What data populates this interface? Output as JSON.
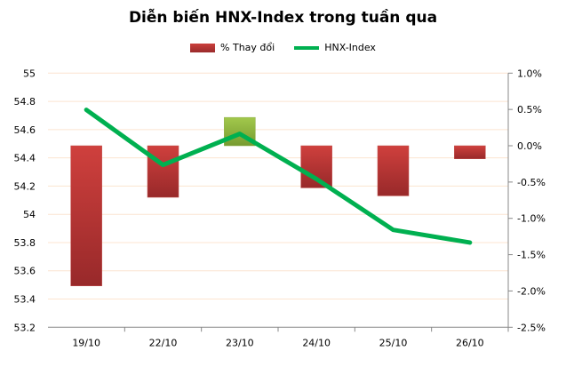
{
  "chart_data": {
    "type": "bar+line",
    "title": "Diễn biến HNX-Index trong tuần qua",
    "categories": [
      "19/10",
      "22/10",
      "23/10",
      "24/10",
      "25/10",
      "26/10"
    ],
    "series": [
      {
        "name": "% Thay đổi",
        "type": "bar",
        "axis": "right",
        "unit": "%",
        "values": [
          -1.93,
          -0.71,
          0.39,
          -0.58,
          -0.69,
          -0.18
        ],
        "colors": {
          "negative": "#b83434",
          "positive": "#8cb43c"
        }
      },
      {
        "name": "HNX-Index",
        "type": "line",
        "axis": "left",
        "values": [
          54.74,
          54.35,
          54.57,
          54.25,
          53.89,
          53.8
        ],
        "color": "#00b050"
      }
    ],
    "left_axis": {
      "ylim": [
        53.2,
        55
      ],
      "ticks": [
        "53.2",
        "53.4",
        "53.6",
        "53.8",
        "54",
        "54.2",
        "54.4",
        "54.6",
        "54.8",
        "55"
      ]
    },
    "right_axis": {
      "ylim": [
        -2.5,
        1.0
      ],
      "ticks": [
        "-2.5%",
        "-2.0%",
        "-1.5%",
        "-1.0%",
        "-0.5%",
        "0.0%",
        "0.5%",
        "1.0%"
      ]
    },
    "grid": true,
    "legend": "top"
  }
}
